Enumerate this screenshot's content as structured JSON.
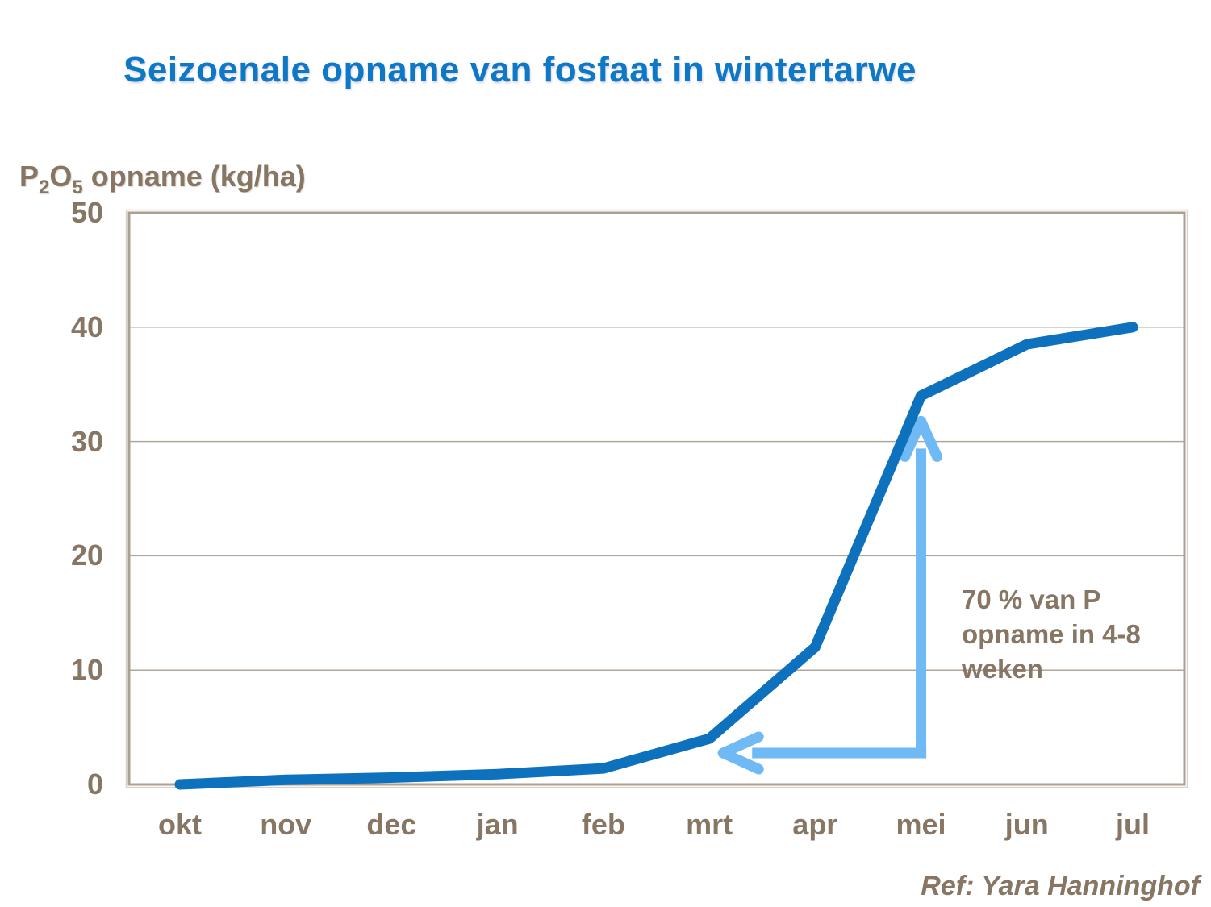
{
  "title": {
    "text": "Seizoenale opname van fosfaat in wintertarwe"
  },
  "y_axis_title": {
    "p": "P",
    "sub_2": "2",
    "o": "O",
    "sub_5": "5",
    "rest": " opname (kg/ha)"
  },
  "annotation": {
    "lines": [
      "70 % van P",
      "opname in 4-8",
      "weken"
    ]
  },
  "reference": {
    "text": "Ref: Yara Hanninghof"
  },
  "colors": {
    "title_blue": "#0d78c6",
    "line_blue": "#0e71bd",
    "arrow_light_blue": "#6fb9f5",
    "label_brown": "#877663",
    "frame_tan": "#ab9f91",
    "frame_highlight": "#d9d3c9",
    "gridline_tan": "#b0a79c",
    "background": "#ffffff"
  },
  "chart_data": {
    "type": "line",
    "title": "Seizoenale opname van fosfaat in wintertarwe",
    "ylabel": "P2O5 opname (kg/ha)",
    "xlabel": "",
    "categories": [
      "okt",
      "nov",
      "dec",
      "jan",
      "feb",
      "mrt",
      "apr",
      "mei",
      "jun",
      "jul"
    ],
    "values": [
      0,
      0.4,
      0.6,
      0.9,
      1.4,
      4,
      12,
      34,
      38.5,
      40
    ],
    "ylim": [
      0,
      50
    ],
    "yticks": [
      0,
      10,
      20,
      30,
      40,
      50
    ],
    "grid": "horizontal",
    "legend": "none",
    "annotations": {
      "text": "70 % van P opname in 4-8 weken",
      "arrows": [
        {
          "direction": "up",
          "at_category": "mei",
          "from_value": 2.3,
          "to_value": 32.2
        },
        {
          "direction": "left",
          "at_value": 2.75,
          "from_category_position": 7.05,
          "to_category_position": 5.1
        }
      ]
    }
  }
}
